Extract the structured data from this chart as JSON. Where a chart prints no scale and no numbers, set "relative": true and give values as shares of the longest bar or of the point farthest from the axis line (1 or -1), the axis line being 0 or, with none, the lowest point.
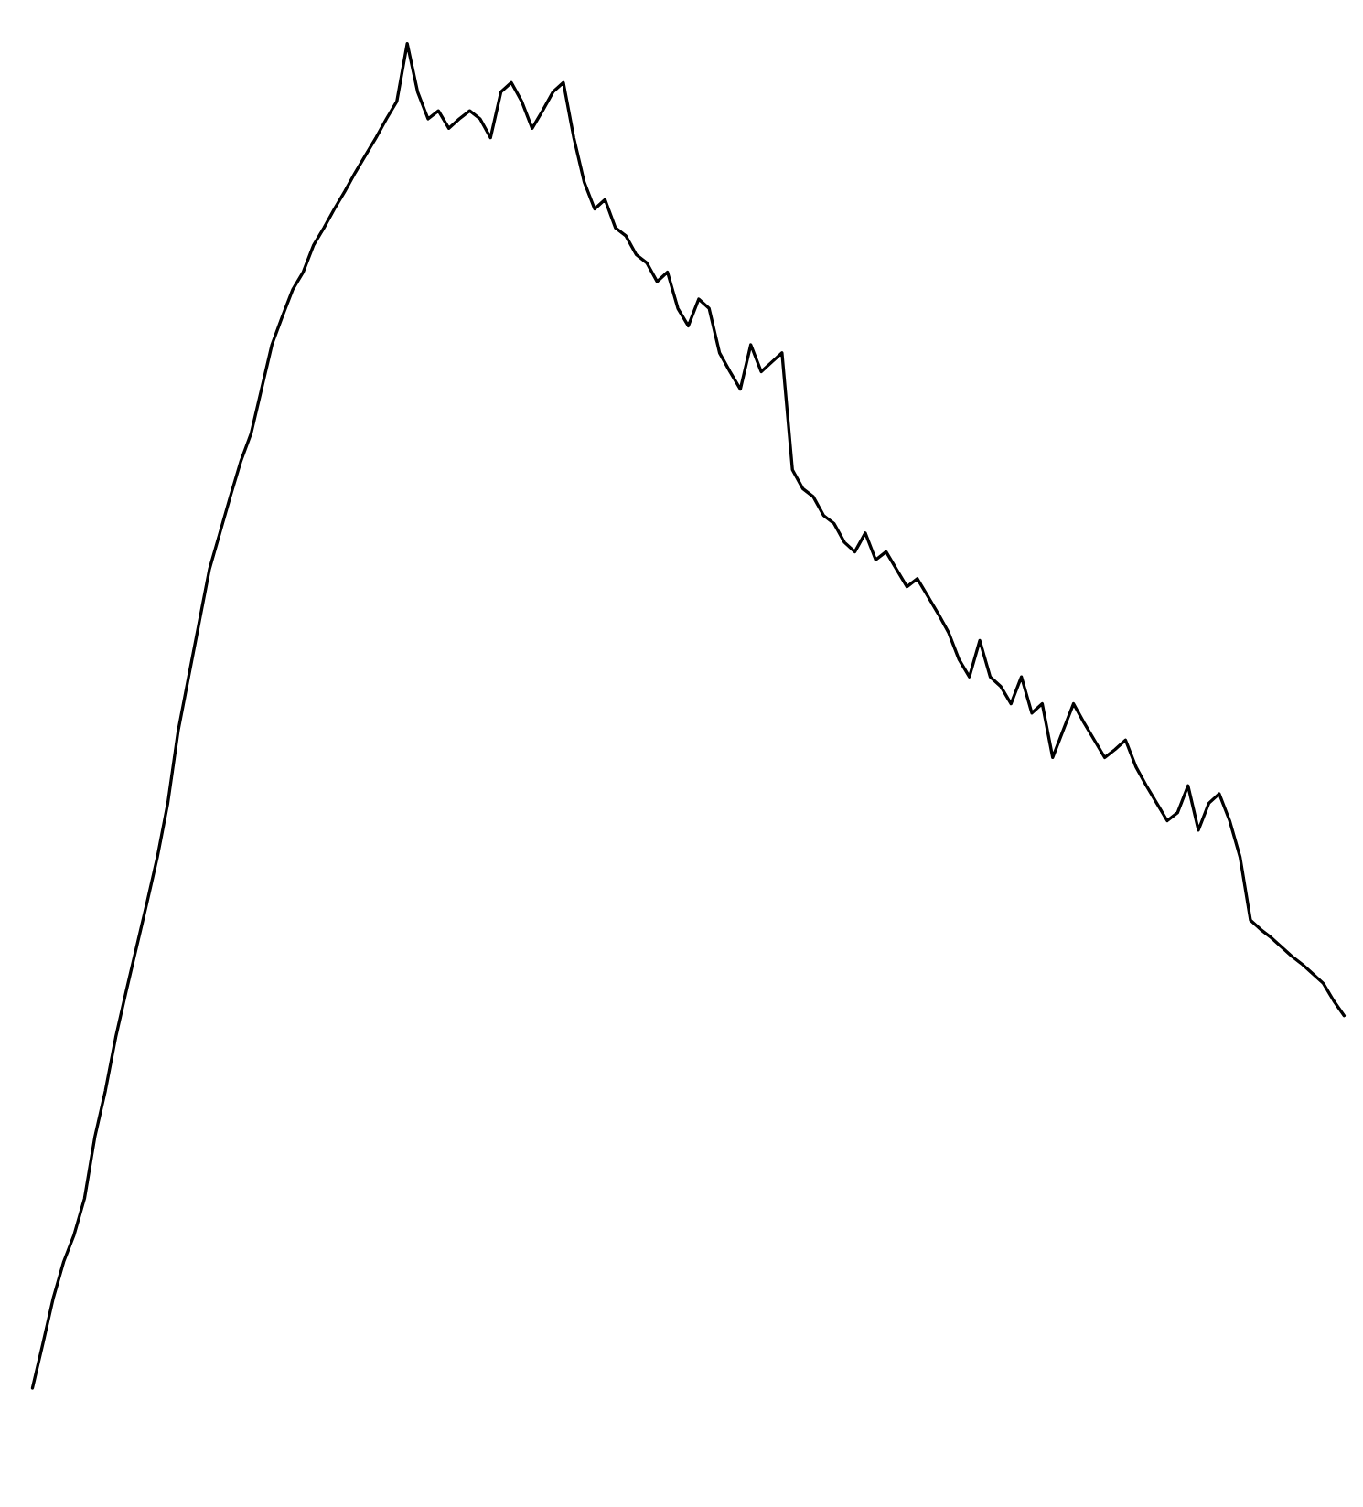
{
  "chart_data": {
    "type": "line",
    "relative": true,
    "color": "#000000",
    "legend": false,
    "categories": [
      null,
      null,
      null,
      null,
      null,
      null,
      null,
      null,
      null,
      null,
      null,
      null,
      null,
      null,
      null,
      null,
      null,
      null,
      null,
      null,
      null,
      null,
      null,
      null,
      null,
      null,
      null,
      null,
      null,
      null,
      null,
      null,
      null,
      null,
      null,
      null,
      null,
      null,
      null,
      null,
      null,
      null,
      null,
      null,
      null,
      null,
      null,
      null,
      null,
      null,
      null,
      null,
      null,
      null,
      null,
      null,
      null,
      null,
      null,
      null,
      null,
      null,
      null,
      null,
      null,
      null,
      null,
      null,
      null,
      null,
      null,
      null,
      null,
      null,
      null,
      null,
      null,
      null,
      null,
      null,
      null,
      null,
      null,
      null,
      null,
      null,
      null,
      null,
      null,
      null,
      null,
      null,
      null,
      null,
      null,
      null,
      null,
      null,
      null,
      null,
      null,
      null,
      null,
      null,
      null,
      null,
      null,
      null,
      null,
      null,
      null,
      null,
      null,
      null,
      null,
      null,
      null,
      null,
      null,
      null,
      null,
      null,
      null,
      null,
      null,
      null,
      null
    ],
    "values": [
      0,
      0.033,
      0.067,
      0.094,
      0.114,
      0.141,
      0.187,
      0.221,
      0.261,
      0.295,
      0.328,
      0.361,
      0.395,
      0.435,
      0.489,
      0.529,
      0.569,
      0.609,
      0.636,
      0.663,
      0.689,
      0.71,
      0.743,
      0.776,
      0.797,
      0.817,
      0.83,
      0.85,
      0.863,
      0.877,
      0.89,
      0.904,
      0.917,
      0.93,
      0.944,
      0.957,
      1,
      0.964,
      0.944,
      0.95,
      0.937,
      0.944,
      0.95,
      0.944,
      0.93,
      0.964,
      0.971,
      0.957,
      0.937,
      0.95,
      0.964,
      0.971,
      0.93,
      0.897,
      0.877,
      0.884,
      0.863,
      0.857,
      0.843,
      0.837,
      0.823,
      0.83,
      0.803,
      0.79,
      0.81,
      0.803,
      0.77,
      0.756,
      0.743,
      0.776,
      0.756,
      0.763,
      0.77,
      0.683,
      0.669,
      0.663,
      0.649,
      0.643,
      0.629,
      0.622,
      0.636,
      0.616,
      0.622,
      0.609,
      0.596,
      0.602,
      0.589,
      0.576,
      0.562,
      0.542,
      0.529,
      0.556,
      0.529,
      0.522,
      0.509,
      0.529,
      0.502,
      0.509,
      0.469,
      0.489,
      0.509,
      0.495,
      0.482,
      0.469,
      0.475,
      0.482,
      0.462,
      0.448,
      0.435,
      0.422,
      0.428,
      0.448,
      0.415,
      0.435,
      0.442,
      0.422,
      0.395,
      0.348,
      0.341,
      0.335,
      0.328,
      0.321,
      0.315,
      0.308,
      0.301,
      0.288,
      0.277
    ]
  }
}
